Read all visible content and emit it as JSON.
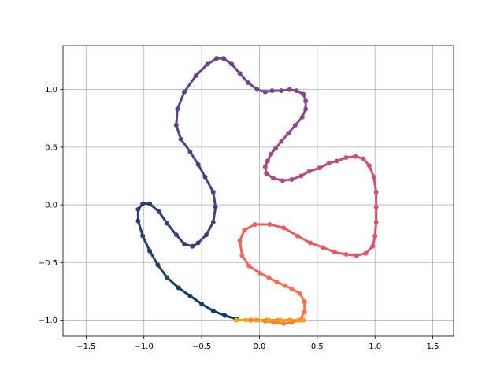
{
  "chart_data": {
    "type": "scatter",
    "title": "",
    "xlabel": "",
    "ylabel": "",
    "xlim": [
      -1.7,
      1.68
    ],
    "ylim": [
      -1.14,
      1.38
    ],
    "grid": true,
    "x_ticks": [
      -1.5,
      -1.0,
      -0.5,
      0.0,
      0.5,
      1.0,
      1.5
    ],
    "y_ticks": [
      -1.0,
      -0.5,
      0.0,
      0.5,
      1.0
    ],
    "x_tick_labels": [
      "−1.5",
      "−1.0",
      "−0.5",
      "0.0",
      "0.5",
      "1.0",
      "1.5"
    ],
    "y_tick_labels": [
      "−1.0",
      "−0.5",
      "0.0",
      "0.5",
      "1.0"
    ],
    "colormap_start": "#0b3e5a",
    "colormap_end": "#f9a602",
    "series": [
      {
        "color_by": "index",
        "x": [
          -0.2,
          -0.3,
          -0.4,
          -0.5,
          -0.6,
          -0.7,
          -0.8,
          -0.88,
          -0.95,
          -1.01,
          -1.05,
          -1.05,
          -1.01,
          -0.95,
          -0.87,
          -0.8,
          -0.72,
          -0.65,
          -0.58,
          -0.53,
          -0.46,
          -0.4,
          -0.38,
          -0.4,
          -0.47,
          -0.53,
          -0.6,
          -0.68,
          -0.72,
          -0.71,
          -0.65,
          -0.55,
          -0.45,
          -0.37,
          -0.31,
          -0.24,
          -0.17,
          -0.1,
          -0.02,
          0.05,
          0.11,
          0.19,
          0.26,
          0.32,
          0.38,
          0.4,
          0.4,
          0.37,
          0.31,
          0.25,
          0.19,
          0.14,
          0.1,
          0.07,
          0.05,
          0.06,
          0.12,
          0.2,
          0.28,
          0.36,
          0.43,
          0.52,
          0.6,
          0.67,
          0.75,
          0.83,
          0.9,
          0.95,
          0.99,
          1.01,
          1.01,
          1.01,
          1.0,
          0.98,
          0.92,
          0.84,
          0.75,
          0.65,
          0.55,
          0.44,
          0.33,
          0.21,
          0.09,
          -0.04,
          -0.13,
          -0.17,
          -0.15,
          -0.09,
          0.0,
          0.08,
          0.15,
          0.22,
          0.28,
          0.35,
          0.39,
          0.39,
          0.35,
          0.28,
          0.21,
          0.13,
          0.05,
          -0.02,
          -0.07,
          -0.08,
          -0.03,
          0.06,
          0.16,
          0.26,
          0.34,
          0.38,
          0.38,
          0.34,
          0.27,
          0.18,
          0.08,
          -0.03,
          -0.12,
          -0.2
        ],
        "y": [
          -0.99,
          -0.96,
          -0.92,
          -0.86,
          -0.79,
          -0.72,
          -0.63,
          -0.52,
          -0.4,
          -0.27,
          -0.14,
          -0.04,
          0.01,
          0.01,
          -0.06,
          -0.16,
          -0.26,
          -0.34,
          -0.36,
          -0.33,
          -0.26,
          -0.15,
          -0.02,
          0.11,
          0.24,
          0.35,
          0.46,
          0.57,
          0.69,
          0.83,
          0.98,
          1.12,
          1.22,
          1.27,
          1.27,
          1.22,
          1.14,
          1.06,
          1.0,
          0.98,
          0.99,
          0.99,
          1.0,
          0.99,
          0.96,
          0.9,
          0.83,
          0.76,
          0.69,
          0.62,
          0.55,
          0.49,
          0.44,
          0.38,
          0.33,
          0.27,
          0.23,
          0.21,
          0.22,
          0.25,
          0.29,
          0.32,
          0.36,
          0.38,
          0.41,
          0.42,
          0.4,
          0.34,
          0.24,
          0.11,
          -0.02,
          -0.15,
          -0.27,
          -0.36,
          -0.42,
          -0.44,
          -0.43,
          -0.41,
          -0.37,
          -0.33,
          -0.27,
          -0.2,
          -0.17,
          -0.17,
          -0.22,
          -0.31,
          -0.44,
          -0.53,
          -0.59,
          -0.63,
          -0.67,
          -0.7,
          -0.73,
          -0.77,
          -0.84,
          -0.93,
          -1.0,
          -1.02,
          -1.03,
          -1.02,
          -1.01,
          -1.0,
          -1.0,
          -1.0,
          -1.0,
          -1.0,
          -1.0,
          -1.0,
          -1.0,
          -1.0,
          -1.0,
          -1.0,
          -1.0,
          -1.0,
          -1.0,
          -1.0,
          -1.0,
          -1.0
        ]
      }
    ]
  }
}
